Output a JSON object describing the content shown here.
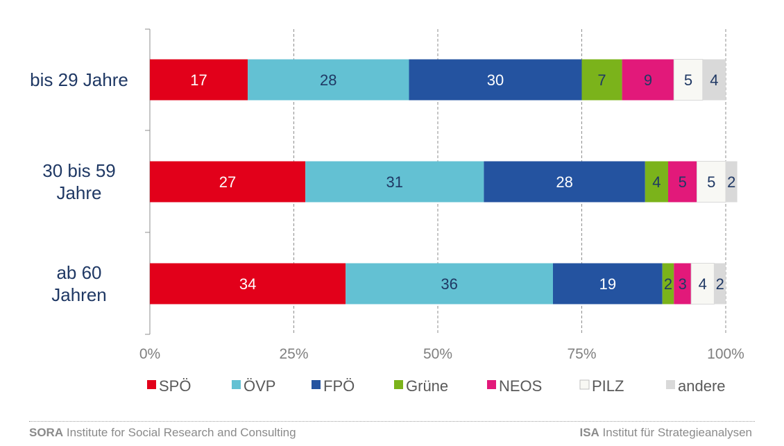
{
  "chart_data": {
    "type": "bar",
    "orientation": "horizontal",
    "stacked": true,
    "categories": [
      "bis 29 Jahre",
      "30 bis 59 Jahre",
      "ab 60 Jahren"
    ],
    "category_lines": [
      [
        "bis 29 Jahre"
      ],
      [
        "30 bis 59",
        "Jahre"
      ],
      [
        "ab 60",
        "Jahren"
      ]
    ],
    "series": [
      {
        "name": "SPÖ",
        "color": "#e2001a",
        "label_color": "#ffffff",
        "values": [
          17,
          27,
          34
        ]
      },
      {
        "name": "ÖVP",
        "color": "#63c1d3",
        "label_color": "#1f3864",
        "values": [
          28,
          31,
          36
        ]
      },
      {
        "name": "FPÖ",
        "color": "#2453a0",
        "label_color": "#ffffff",
        "values": [
          30,
          28,
          19
        ]
      },
      {
        "name": "Grüne",
        "color": "#7bb31b",
        "label_color": "#1f3864",
        "values": [
          7,
          4,
          2
        ]
      },
      {
        "name": "NEOS",
        "color": "#e2197a",
        "label_color": "#1f3864",
        "values": [
          9,
          5,
          3
        ]
      },
      {
        "name": "PILZ",
        "color": "#f8f8f4",
        "label_color": "#1f3864",
        "values": [
          5,
          5,
          4
        ]
      },
      {
        "name": "andere",
        "color": "#d9d9d9",
        "label_color": "#1f3864",
        "values": [
          4,
          2,
          2
        ]
      }
    ],
    "x_ticks": [
      "0%",
      "25%",
      "50%",
      "75%",
      "100%"
    ],
    "xlim": [
      0,
      100
    ],
    "grid": true,
    "legend_position": "bottom"
  },
  "footer": {
    "left_bold": "SORA",
    "left_text": " Institute for Social Research and Consulting",
    "right_bold": "ISA",
    "right_text": " Institut für Strategieanalysen"
  }
}
